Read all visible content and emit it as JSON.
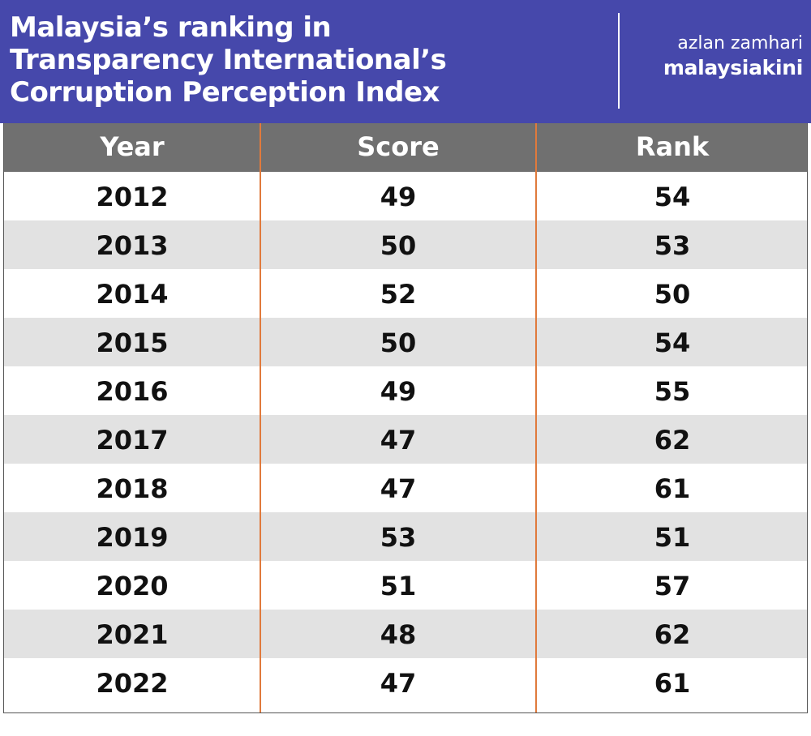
{
  "header": {
    "title_lines": [
      "Malaysia’s ranking in",
      "Transparency International’s",
      "Corruption Perception Index"
    ],
    "author": "azlan zamhari",
    "outlet": "malaysiakini",
    "background_color": "#4648ab"
  },
  "chart_data": {
    "type": "table",
    "title": "Malaysia’s ranking in Transparency International’s Corruption Perception Index",
    "columns": [
      "Year",
      "Score",
      "Rank"
    ],
    "rows": [
      [
        "2012",
        "49",
        "54"
      ],
      [
        "2013",
        "50",
        "53"
      ],
      [
        "2014",
        "52",
        "50"
      ],
      [
        "2015",
        "50",
        "54"
      ],
      [
        "2016",
        "49",
        "55"
      ],
      [
        "2017",
        "47",
        "62"
      ],
      [
        "2018",
        "47",
        "61"
      ],
      [
        "2019",
        "53",
        "51"
      ],
      [
        "2020",
        "51",
        "57"
      ],
      [
        "2021",
        "48",
        "62"
      ],
      [
        "2022",
        "47",
        "61"
      ]
    ],
    "header_color": "#707070",
    "stripe_color": "#e2e2e2",
    "column_divider_color": "#e07a3c"
  }
}
